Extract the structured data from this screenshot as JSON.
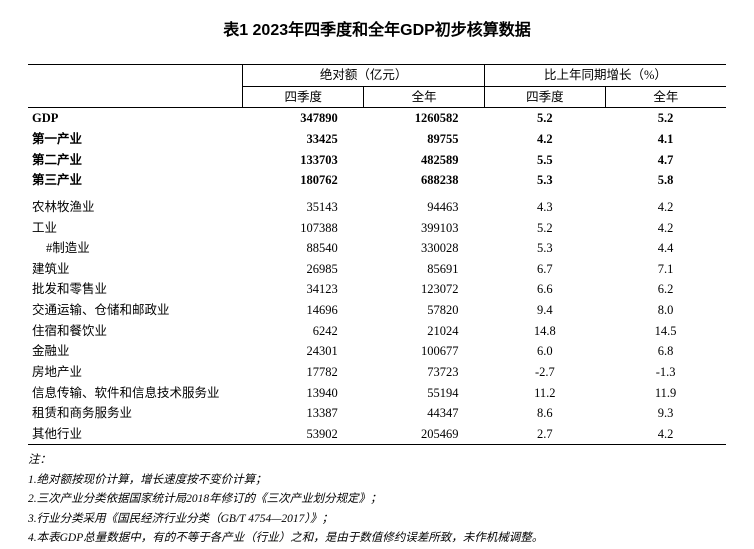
{
  "title": "表1   2023年四季度和全年GDP初步核算数据",
  "header": {
    "group1": "绝对额（亿元）",
    "group2": "比上年同期增长（%）",
    "col_q4": "四季度",
    "col_year": "全年"
  },
  "rows_main": [
    {
      "label": "GDP",
      "q4_abs": "347890",
      "yr_abs": "1260582",
      "q4_g": "5.2",
      "yr_g": "5.2"
    },
    {
      "label": "第一产业",
      "q4_abs": "33425",
      "yr_abs": "89755",
      "q4_g": "4.2",
      "yr_g": "4.1"
    },
    {
      "label": "第二产业",
      "q4_abs": "133703",
      "yr_abs": "482589",
      "q4_g": "5.5",
      "yr_g": "4.7"
    },
    {
      "label": "第三产业",
      "q4_abs": "180762",
      "yr_abs": "688238",
      "q4_g": "5.3",
      "yr_g": "5.8"
    }
  ],
  "rows_detail": [
    {
      "label": "农林牧渔业",
      "q4_abs": "35143",
      "yr_abs": "94463",
      "q4_g": "4.3",
      "yr_g": "4.2"
    },
    {
      "label": "工业",
      "q4_abs": "107388",
      "yr_abs": "399103",
      "q4_g": "5.2",
      "yr_g": "4.2"
    },
    {
      "label": "#制造业",
      "indent": true,
      "q4_abs": "88540",
      "yr_abs": "330028",
      "q4_g": "5.3",
      "yr_g": "4.4"
    },
    {
      "label": "建筑业",
      "q4_abs": "26985",
      "yr_abs": "85691",
      "q4_g": "6.7",
      "yr_g": "7.1"
    },
    {
      "label": "批发和零售业",
      "q4_abs": "34123",
      "yr_abs": "123072",
      "q4_g": "6.6",
      "yr_g": "6.2"
    },
    {
      "label": "交通运输、仓储和邮政业",
      "q4_abs": "14696",
      "yr_abs": "57820",
      "q4_g": "9.4",
      "yr_g": "8.0"
    },
    {
      "label": "住宿和餐饮业",
      "q4_abs": "6242",
      "yr_abs": "21024",
      "q4_g": "14.8",
      "yr_g": "14.5"
    },
    {
      "label": "金融业",
      "q4_abs": "24301",
      "yr_abs": "100677",
      "q4_g": "6.0",
      "yr_g": "6.8"
    },
    {
      "label": "房地产业",
      "q4_abs": "17782",
      "yr_abs": "73723",
      "q4_g": "-2.7",
      "yr_g": "-1.3"
    },
    {
      "label": "信息传输、软件和信息技术服务业",
      "q4_abs": "13940",
      "yr_abs": "55194",
      "q4_g": "11.2",
      "yr_g": "11.9"
    },
    {
      "label": "租赁和商务服务业",
      "q4_abs": "13387",
      "yr_abs": "44347",
      "q4_g": "8.6",
      "yr_g": "9.3"
    },
    {
      "label": "其他行业",
      "q4_abs": "53902",
      "yr_abs": "205469",
      "q4_g": "2.7",
      "yr_g": "4.2"
    }
  ],
  "notes": {
    "head": "注：",
    "n1": "1.绝对额按现价计算，增长速度按不变价计算；",
    "n2": "2.三次产业分类依据国家统计局2018年修订的《三次产业划分规定》；",
    "n3": "3.行业分类采用《国民经济行业分类（GB/T 4754—2017）》；",
    "n4": "4.本表GDP总量数据中，有的不等于各产业（行业）之和，是由于数值修约误差所致，未作机械调整。"
  }
}
